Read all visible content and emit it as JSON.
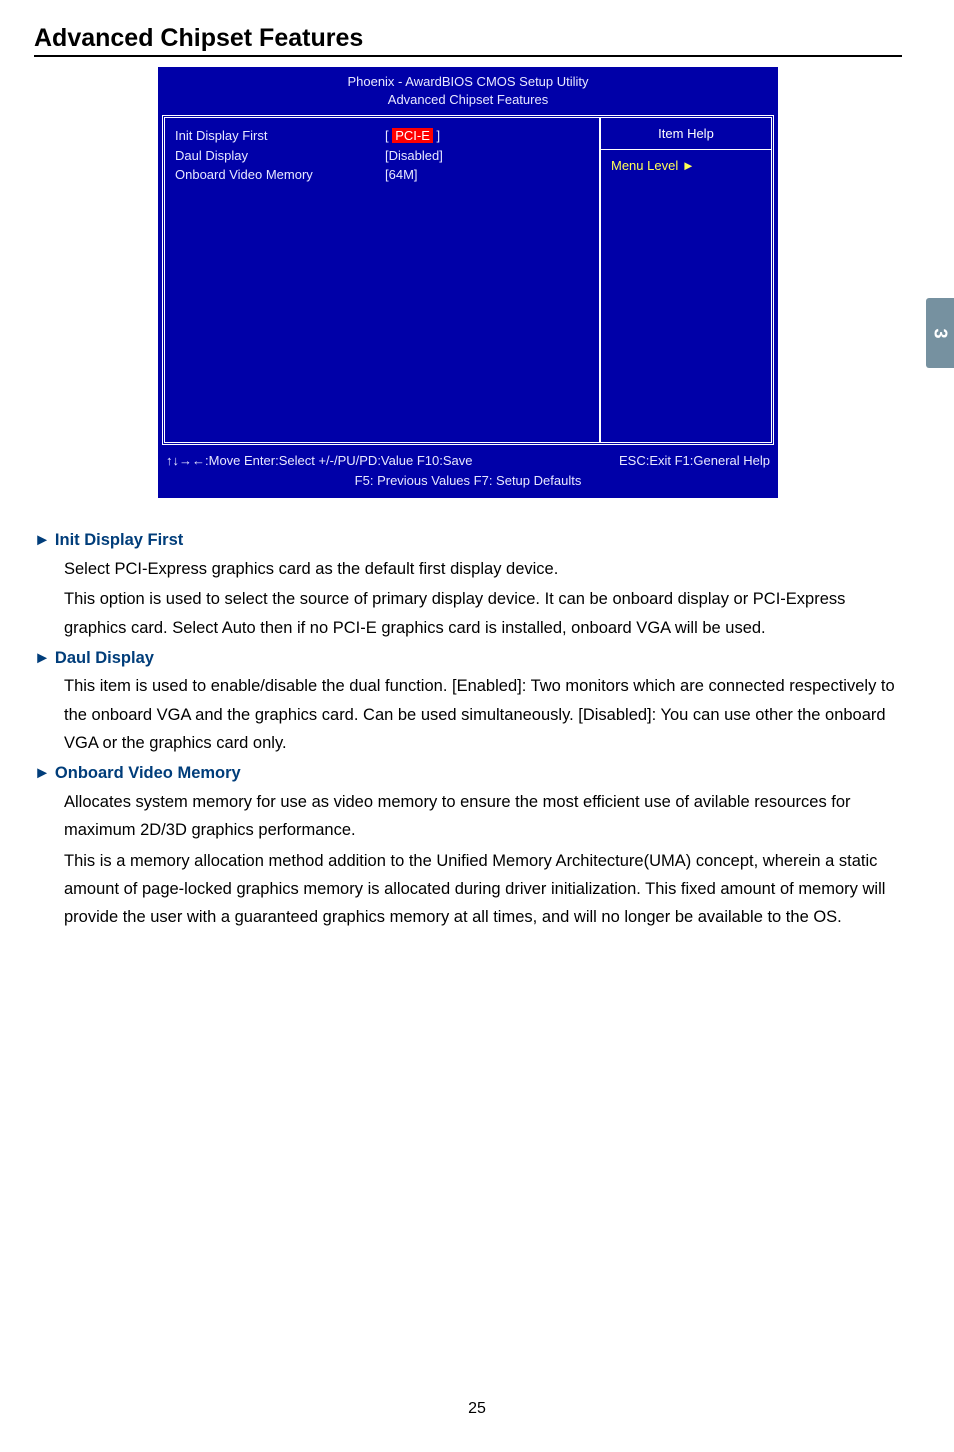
{
  "pageTab": "3",
  "sectionTitle": "Advanced Chipset Features",
  "bios": {
    "headerLine1": "Phoenix - AwardBIOS CMOS Setup Utility",
    "headerLine2": "Advanced Chipset Features",
    "rows": [
      {
        "label": "Init Display First",
        "prefix": "[ ",
        "value": "PCI-E",
        "suffix": " ]",
        "highlight": true
      },
      {
        "label": "Daul Display",
        "prefix": "",
        "value": "[Disabled]",
        "suffix": "",
        "highlight": false
      },
      {
        "label": "Onboard Video Memory",
        "prefix": "",
        "value": "[64M]",
        "suffix": "",
        "highlight": false
      }
    ],
    "helpTitle": "Item Help",
    "menuLevel": "Menu Level  ►",
    "footer1Left": "↑↓→←:Move   Enter:Select   +/-/PU/PD:Value   F10:Save",
    "footer1Right": "ESC:Exit   F1:General Help",
    "footer2": "F5: Previous Values           F7: Setup Defaults"
  },
  "items": [
    {
      "title": "► Init Display First",
      "paras": [
        "Select PCI-Express graphics card as the default first display device.",
        "This option is used to select the source of primary display device. It can be onboard display  or PCI-Express graphics card. Select Auto then if no PCI-E graphics card is installed, onboard VGA will be used."
      ]
    },
    {
      "title": "► Daul Display",
      "paras": [
        "This item is used to enable/disable the dual function. [Enabled]: Two monitors which are connected respectively to the onboard VGA and the graphics card. Can be used simultaneously. [Disabled]: You can use other the onboard VGA or the graphics card only."
      ]
    },
    {
      "title": "► Onboard Video Memory",
      "paras": [
        "Allocates system memory for use as video memory to ensure the most efficient use of avilable resources for maximum 2D/3D graphics performance.",
        "This is a memory allocation method addition to the Unified Memory Architecture(UMA) concept, wherein a static amount of page-locked graphics memory is allocated during driver initialization. This fixed amount of memory will provide the user with a guaranteed graphics memory at all times, and will no longer be available to the OS."
      ]
    }
  ],
  "pageNumber": "25"
}
